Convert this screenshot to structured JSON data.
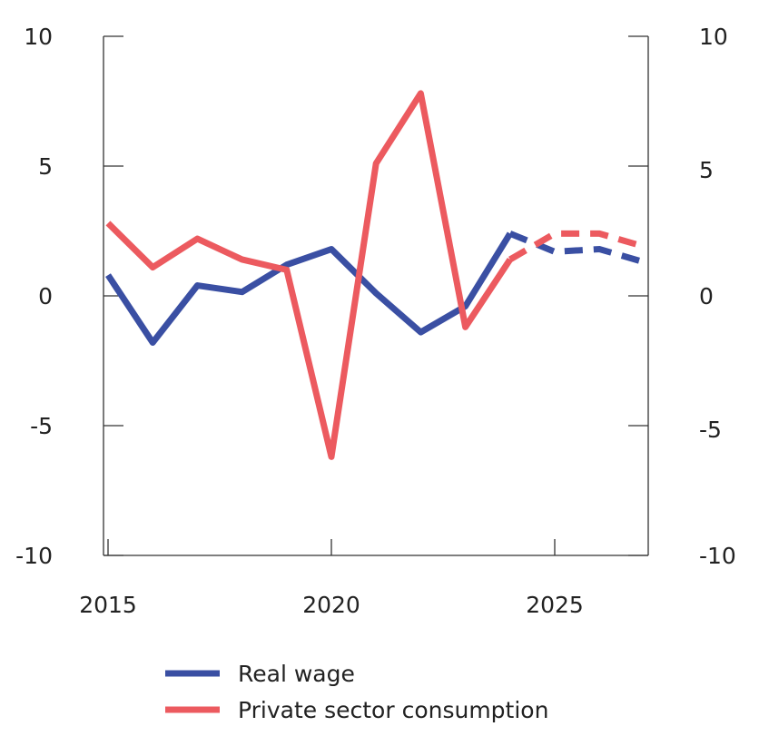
{
  "chart_data": {
    "type": "line",
    "x": [
      2015,
      2016,
      2017,
      2018,
      2019,
      2020,
      2021,
      2022,
      2023,
      2024,
      2025,
      2026,
      2027
    ],
    "forecast_from": 2024,
    "series": [
      {
        "name": "Real wage",
        "color": "#3a4fa3",
        "values": [
          0.8,
          -1.8,
          0.4,
          0.15,
          1.2,
          1.8,
          0.1,
          -1.4,
          -0.4,
          2.4,
          1.7,
          1.8,
          1.3
        ]
      },
      {
        "name": "Private sector consumption",
        "color": "#ec5a5f",
        "values": [
          2.8,
          1.1,
          2.2,
          1.4,
          1.0,
          -6.2,
          5.1,
          7.8,
          -1.2,
          1.4,
          2.4,
          2.4,
          1.9
        ]
      }
    ],
    "ylim": [
      -10,
      10
    ],
    "xlim": [
      2015,
      2027
    ],
    "yticks": [
      "10",
      "5",
      "0",
      "-5",
      "-10"
    ],
    "ytick_values": [
      10,
      5,
      0,
      -5,
      -10
    ],
    "xticks": [
      "2015",
      "2020",
      "2025"
    ],
    "xtick_values": [
      2015,
      2020,
      2025
    ],
    "grid": false,
    "legend": "bottom"
  }
}
